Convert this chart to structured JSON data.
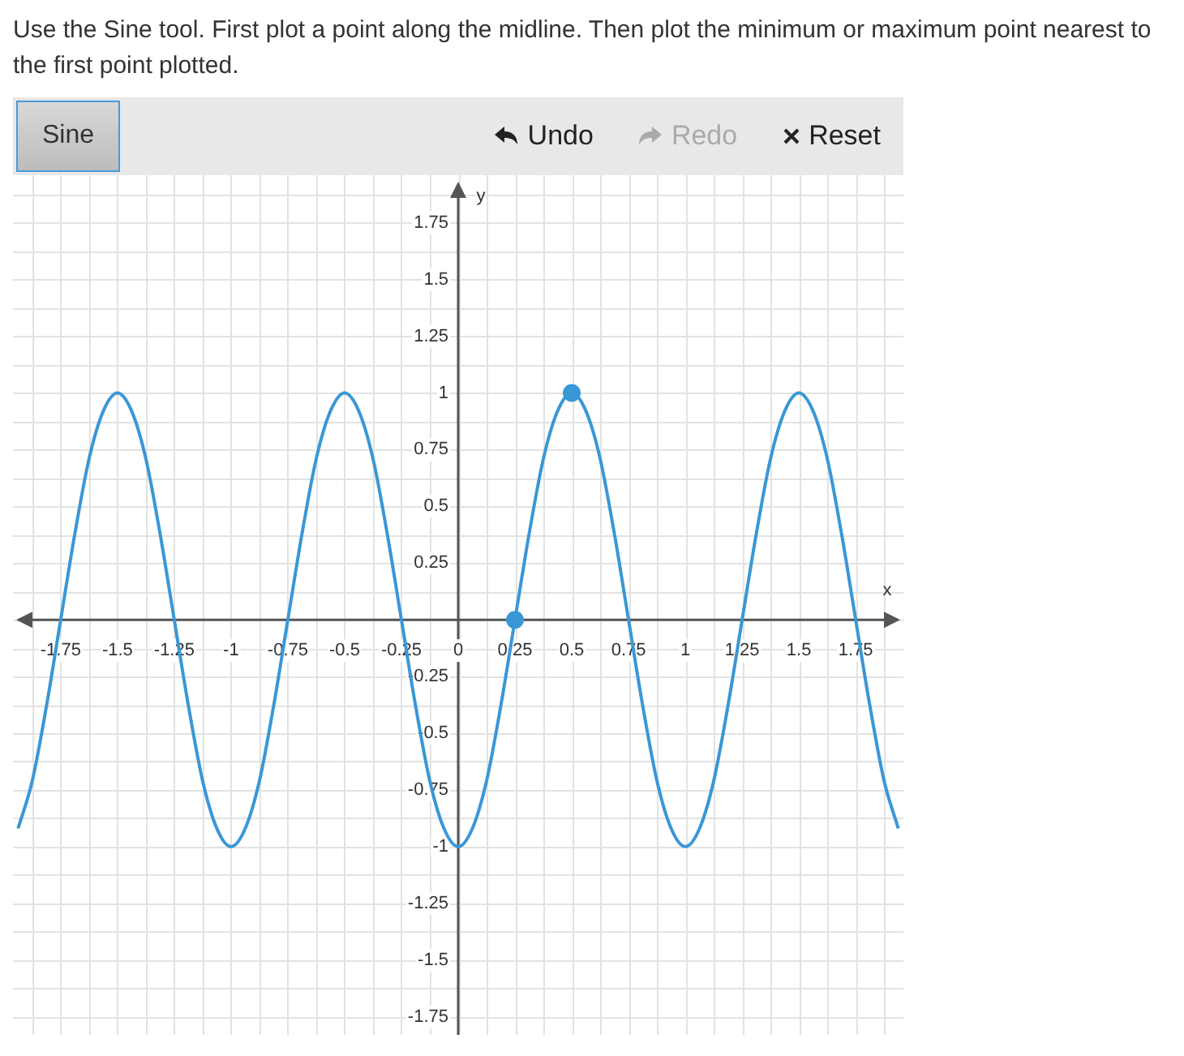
{
  "chart_data": {
    "type": "line",
    "title": "Use the Sine tool. First plot a point along the midline. Then plot the minimum or maximum point nearest to the first point plotted.",
    "xlabel": "x",
    "ylabel": "y",
    "annotations": [
      "Sine",
      "Undo",
      "Redo",
      "Reset"
    ],
    "grid": true,
    "legend": false,
    "xlim": [
      -1.96,
      1.96
    ],
    "ylim": [
      -1.83,
      1.96
    ],
    "xticks": [
      {
        "value": -1.875,
        "label": null
      },
      -1.75,
      {
        "value": -1.625,
        "label": null
      },
      -1.5,
      {
        "value": -1.375,
        "label": null
      },
      -1.25,
      {
        "value": -1.125,
        "label": null
      },
      -1,
      {
        "value": -0.875,
        "label": null
      },
      -0.75,
      {
        "value": -0.625,
        "label": null
      },
      -0.5,
      {
        "value": -0.375,
        "label": null
      },
      -0.25,
      {
        "value": -0.125,
        "label": null
      },
      0,
      {
        "value": 0.125,
        "label": null
      },
      0.25,
      {
        "value": 0.375,
        "label": null
      },
      0.5,
      {
        "value": 0.625,
        "label": null
      },
      0.75,
      {
        "value": 0.875,
        "label": null
      },
      1,
      {
        "value": 1.125,
        "label": null
      },
      1.25,
      {
        "value": 1.375,
        "label": null
      },
      1.5,
      {
        "value": 1.625,
        "label": null
      },
      1.75,
      {
        "value": 1.875,
        "label": null
      }
    ],
    "yticks": [
      {
        "value": -1.75,
        "label": "-1.75"
      },
      {
        "value": -1.625,
        "label": null
      },
      -1.5,
      {
        "value": -1.375,
        "label": null
      },
      -1.25,
      {
        "value": -1.125,
        "label": null
      },
      -1,
      {
        "value": -0.875,
        "label": null
      },
      -0.75,
      {
        "value": -0.625,
        "label": null
      },
      -0.5,
      {
        "value": -0.375,
        "label": null
      },
      -0.25,
      {
        "value": -0.125,
        "label": null
      },
      {
        "value": 0,
        "label": null
      },
      {
        "value": 0.125,
        "label": null
      },
      0.25,
      {
        "value": 0.375,
        "label": null
      },
      0.5,
      {
        "value": 0.625,
        "label": null
      },
      0.75,
      {
        "value": 0.875,
        "label": null
      },
      1,
      {
        "value": 1.125,
        "label": null
      },
      1.25,
      {
        "value": 1.375,
        "label": null
      },
      1.5,
      {
        "value": 1.625,
        "label": null
      },
      1.75,
      {
        "value": 1.875,
        "label": null
      }
    ],
    "series": [
      {
        "type": "line",
        "color": "#3a97d6",
        "marker": "none",
        "line_style": "solid",
        "x": [
          -1.9375,
          -1.875,
          -1.8125,
          -1.75,
          -1.6875,
          -1.625,
          -1.5625,
          -1.5,
          -1.4375,
          -1.375,
          -1.3125,
          -1.25,
          -1.1875,
          -1.125,
          -1.0625,
          -1,
          -0.9375,
          -0.875,
          -0.8125,
          -0.75,
          -0.6875,
          -0.625,
          -0.5625,
          -0.5,
          -0.4375,
          -0.375,
          -0.3125,
          -0.25,
          -0.1875,
          -0.125,
          -0.0625,
          0,
          0.0625,
          0.125,
          0.1875,
          0.25,
          0.3125,
          0.375,
          0.4375,
          0.5,
          0.5625,
          0.625,
          0.6875,
          0.75,
          0.8125,
          0.875,
          0.9375,
          1,
          1.0625,
          1.125,
          1.1875,
          1.25,
          1.3125,
          1.375,
          1.4375,
          1.5,
          1.5625,
          1.625,
          1.6875,
          1.75,
          1.8125,
          1.875,
          1.9375
        ],
        "values": [
          -0.92,
          -0.71,
          -0.38,
          0,
          0.38,
          0.71,
          0.92,
          1,
          0.92,
          0.71,
          0.38,
          0,
          -0.38,
          -0.71,
          -0.92,
          -1,
          -0.92,
          -0.71,
          -0.38,
          0,
          0.38,
          0.71,
          0.92,
          1,
          0.92,
          0.71,
          0.38,
          0,
          -0.38,
          -0.71,
          -0.92,
          -1,
          -0.92,
          -0.71,
          -0.38,
          0,
          0.38,
          0.71,
          0.92,
          1,
          0.92,
          0.71,
          0.38,
          0,
          -0.38,
          -0.71,
          -0.92,
          -1,
          -0.92,
          -0.71,
          -0.38,
          0,
          0.38,
          0.71,
          0.92,
          1,
          0.92,
          0.71,
          0.38,
          0,
          -0.38,
          -0.71,
          -0.92
        ]
      },
      {
        "type": "scatter",
        "color": "#3a97d6",
        "marker": "circle",
        "x": [
          0.25,
          0.5
        ],
        "values": [
          0,
          1
        ]
      }
    ]
  }
}
